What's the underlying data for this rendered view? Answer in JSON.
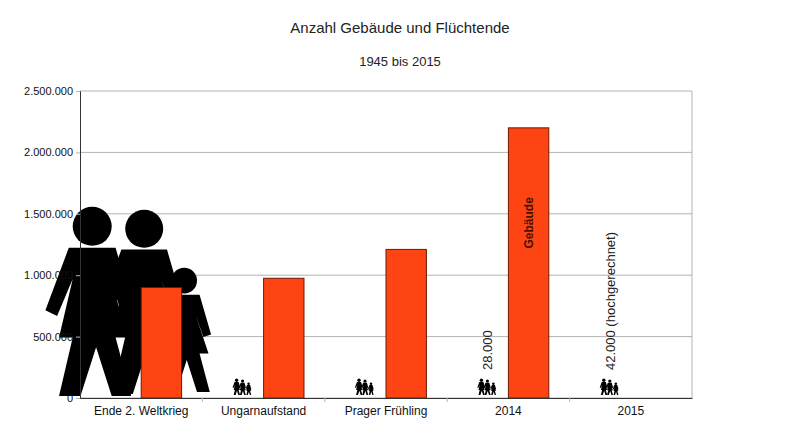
{
  "chart_data": {
    "type": "bar",
    "title": "Anzahl Gebäude und Flüchtende",
    "subtitle": "1945 bis 2015",
    "categories": [
      "Ende 2. Weltkrieg",
      "Ungarnaufstand",
      "Prager Frühling",
      "2014",
      "2015"
    ],
    "series": [
      {
        "name": "Gebäude",
        "color": "#ff4413",
        "values": [
          900000,
          975000,
          1210000,
          2200000,
          null
        ]
      }
    ],
    "ylim": [
      0,
      2500000
    ],
    "yticks": [
      {
        "value": 0,
        "label": "0"
      },
      {
        "value": 500000,
        "label": "500.000"
      },
      {
        "value": 1000000,
        "label": "1.000.000"
      },
      {
        "value": 1500000,
        "label": "1.500.000"
      },
      {
        "value": 2000000,
        "label": "2.000.000"
      },
      {
        "value": 2500000,
        "label": "2.500.000"
      }
    ],
    "grid": true,
    "annotations": [
      {
        "text": "28.000",
        "x": "2014"
      },
      {
        "text": "42.000 (hochgerechnet)",
        "x": "2015"
      }
    ]
  }
}
